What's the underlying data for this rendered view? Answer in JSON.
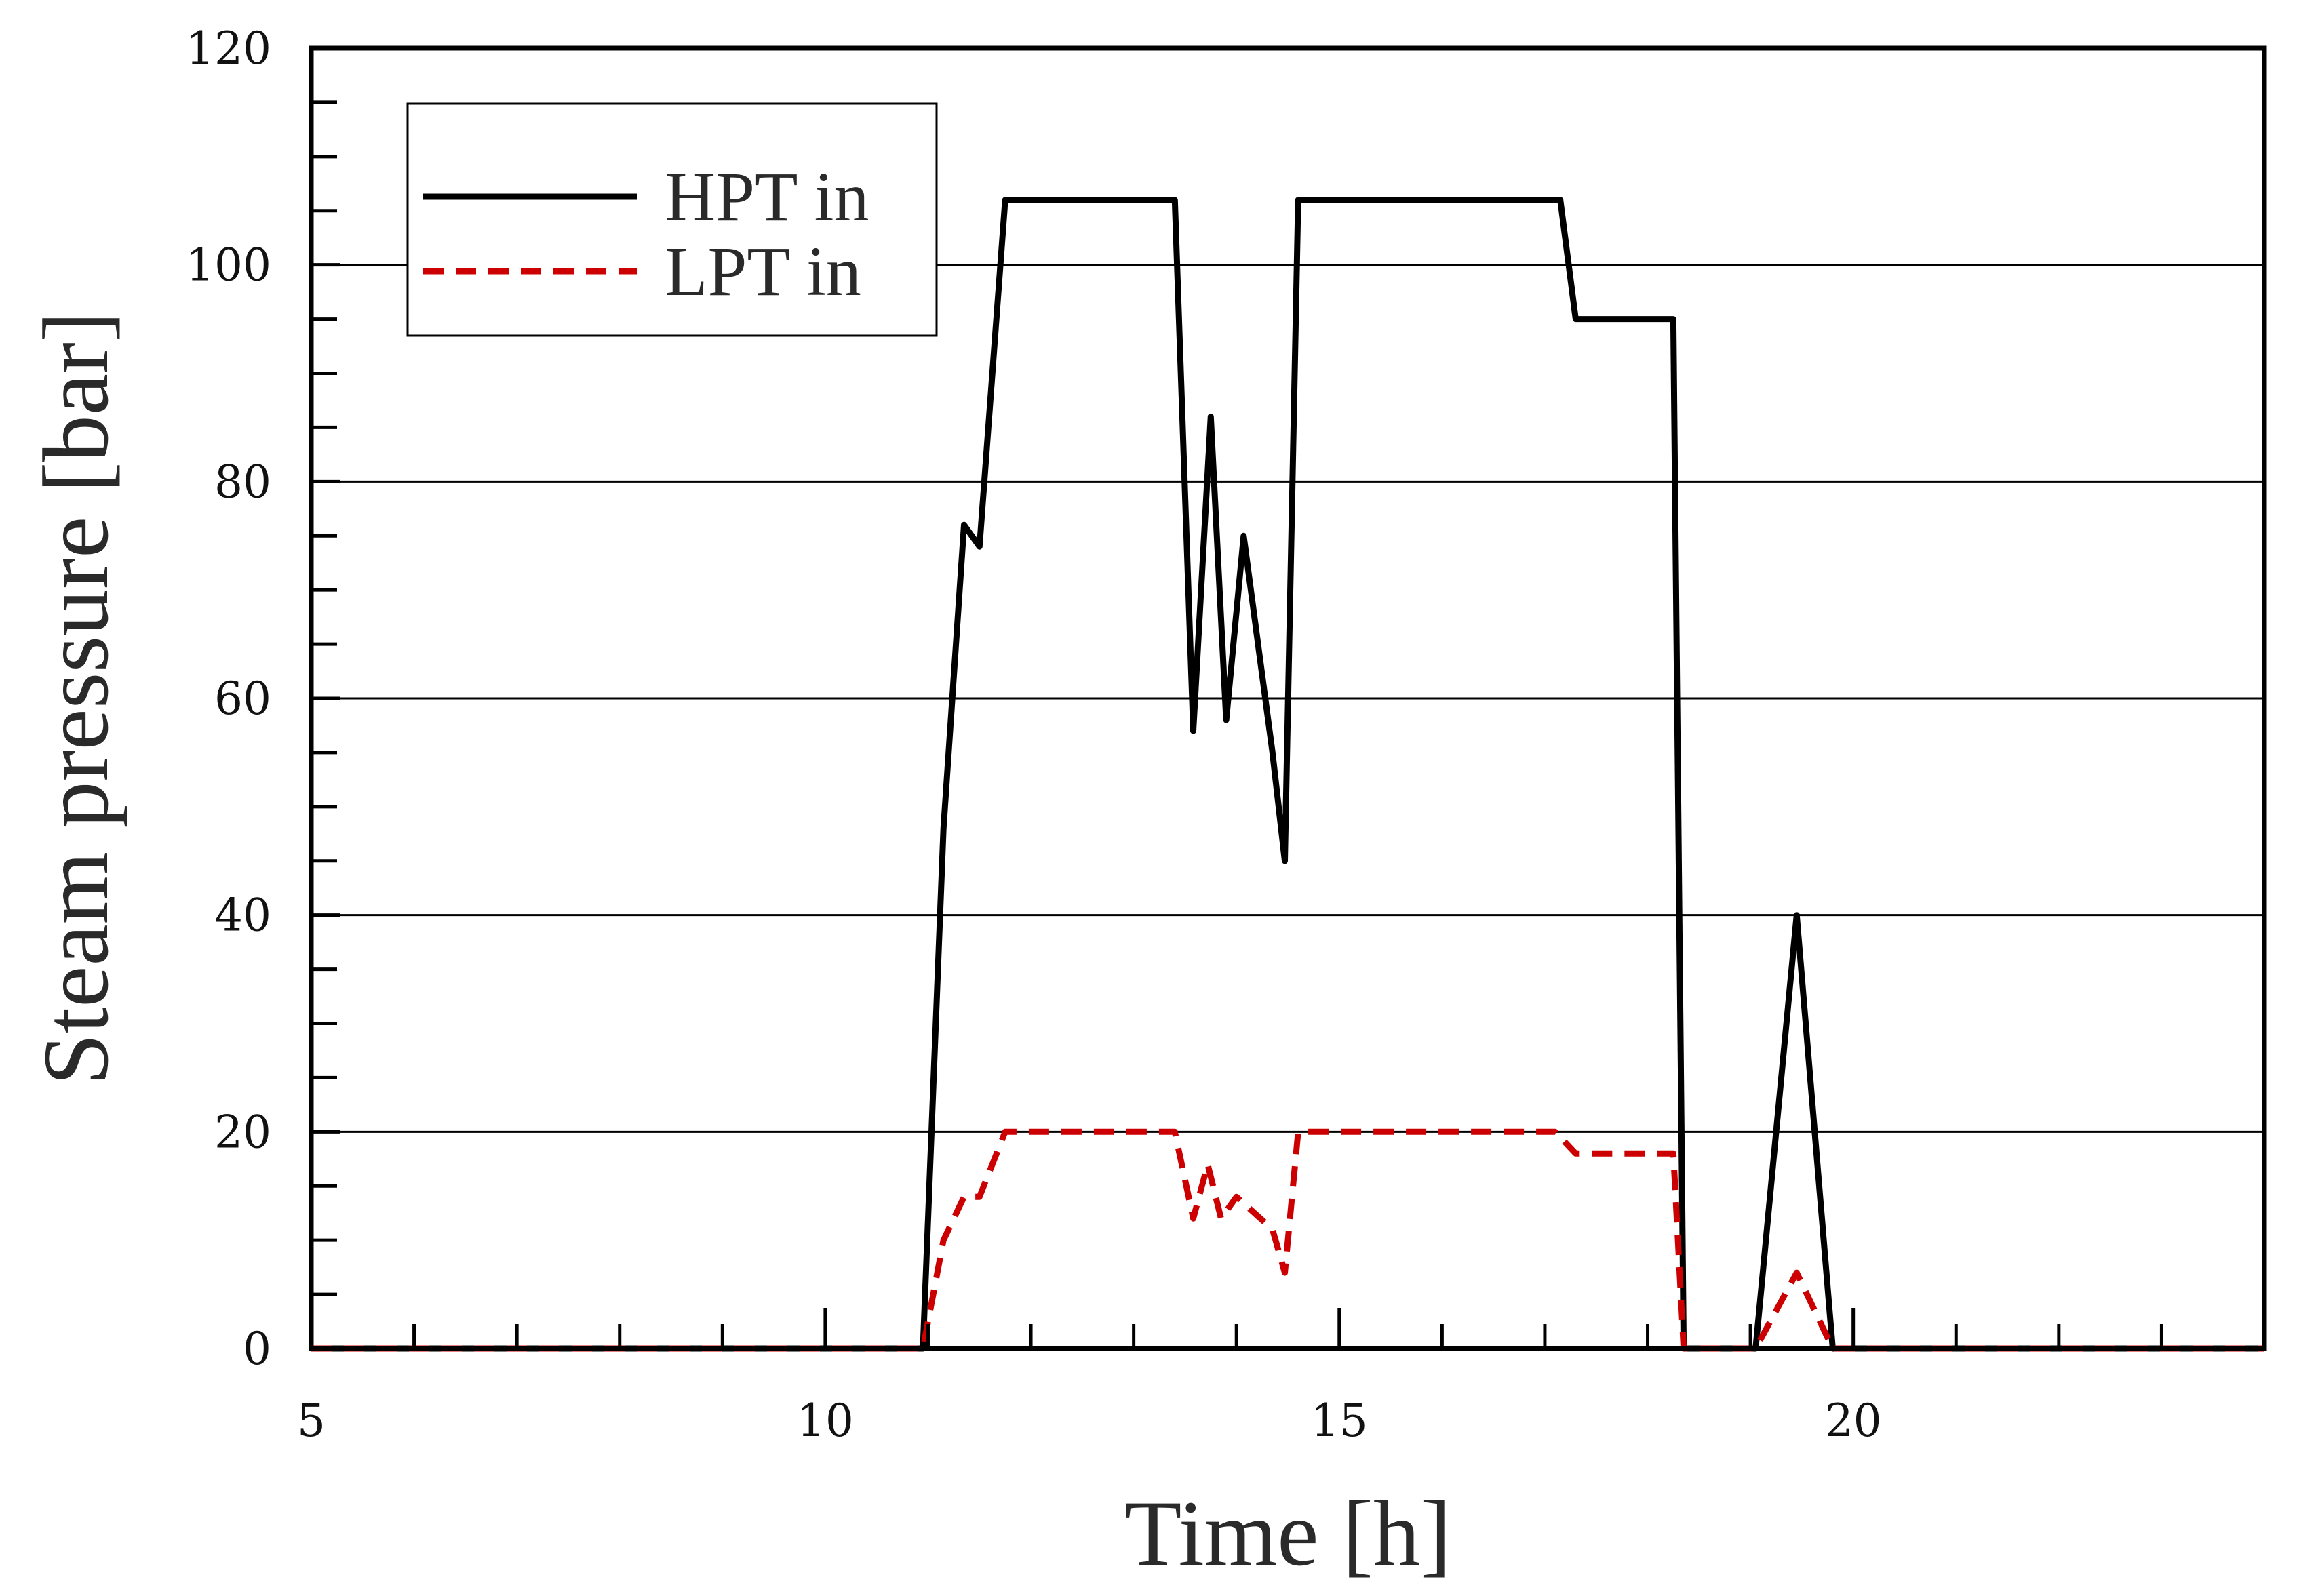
{
  "chart_data": {
    "type": "line",
    "title": "",
    "xlabel": "Time [h]",
    "ylabel": "Steam pressure [bar]",
    "xlim": [
      5,
      24
    ],
    "ylim": [
      0,
      120
    ],
    "xticks": [
      5,
      10,
      15,
      20
    ],
    "xticklabels": [
      "5",
      "10",
      "15",
      "20"
    ],
    "yticks": [
      0,
      20,
      40,
      60,
      80,
      100,
      120
    ],
    "yticklabels": [
      "0",
      "20",
      "40",
      "60",
      "80",
      "100",
      "120"
    ],
    "grid": "horizontal",
    "legend_position": "top-left",
    "series": [
      {
        "name": "HPT in",
        "color": "#000000",
        "style": "solid",
        "x": [
          5,
          10.95,
          11.15,
          11.35,
          11.5,
          11.75,
          13.4,
          13.58,
          13.75,
          13.9,
          14.07,
          14.35,
          14.47,
          14.6,
          17.15,
          17.3,
          18.25,
          18.35,
          19.05,
          19.45,
          19.8,
          24
        ],
        "y": [
          0,
          0,
          48,
          76,
          74,
          106,
          106,
          57,
          86,
          58,
          75,
          55,
          45,
          106,
          106,
          95,
          95,
          0,
          0,
          40,
          0,
          0
        ]
      },
      {
        "name": "LPT in",
        "color": "#cc0000",
        "style": "dashed",
        "x": [
          5,
          10.95,
          11.15,
          11.35,
          11.5,
          11.75,
          13.4,
          13.58,
          13.72,
          13.85,
          14.0,
          14.35,
          14.47,
          14.6,
          17.1,
          17.3,
          18.25,
          18.35,
          19.05,
          19.45,
          19.8,
          24
        ],
        "y": [
          0,
          0,
          10,
          14,
          14,
          20,
          20,
          12,
          17,
          12,
          14,
          11,
          7,
          20,
          20,
          18,
          18,
          0,
          0,
          7,
          0,
          0
        ]
      }
    ]
  }
}
